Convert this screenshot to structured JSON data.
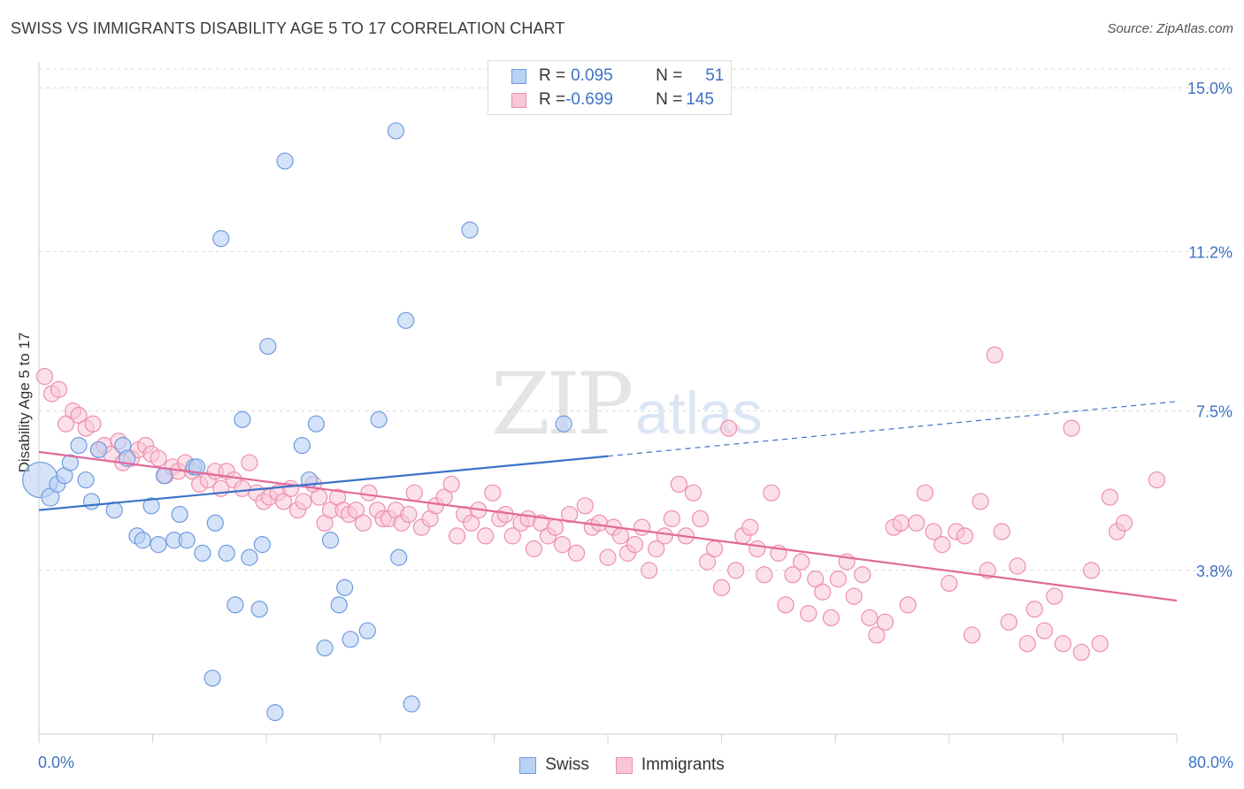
{
  "title": "SWISS VS IMMIGRANTS DISABILITY AGE 5 TO 17 CORRELATION CHART",
  "source": "Source: ZipAtlas.com",
  "watermark": {
    "zip": "ZIP",
    "atlas": "atlas"
  },
  "legend_top": [
    {
      "r_label": "R = ",
      "r_value": "0.095",
      "n_label": "N = ",
      "n_value": "51"
    },
    {
      "r_label": "R = ",
      "r_value": "-0.699",
      "n_label": "N = ",
      "n_value": "145"
    }
  ],
  "colors": {
    "swiss_fill": "#b9d1f3",
    "swiss_stroke": "#6f9be0",
    "swiss_line": "#3a72c8",
    "imm_fill": "#f9c6d5",
    "imm_stroke": "#ec8fae",
    "imm_line": "#e2699a",
    "axis_label": "#3e72c6",
    "grid": "#d9d9d9"
  },
  "chart_data": {
    "type": "scatter",
    "title": "SWISS VS IMMIGRANTS DISABILITY AGE 5 TO 17 CORRELATION CHART",
    "xlabel": "",
    "ylabel": "Disability Age 5 to 17",
    "xlim": [
      0,
      80
    ],
    "ylim": [
      0,
      15.6
    ],
    "x_tick_labels": [
      "0.0%",
      "80.0%"
    ],
    "y_ticks": [
      3.8,
      7.5,
      11.2,
      15.0
    ],
    "y_tick_labels": [
      "3.8%",
      "7.5%",
      "11.2%",
      "15.0%"
    ],
    "grid": "horizontal dashed",
    "series": [
      {
        "name": "Swiss",
        "r": 0.095,
        "n": 51,
        "trend": {
          "x0": 0,
          "y0": 5.2,
          "x1": 40,
          "y1": 6.45,
          "dash_to_x": 80,
          "dash_to_y": 7.72
        },
        "points": [
          [
            0.1,
            5.9,
            20
          ],
          [
            0.8,
            5.5,
            10
          ],
          [
            1.3,
            5.8,
            9
          ],
          [
            1.8,
            6.0,
            9
          ],
          [
            2.2,
            6.3,
            9
          ],
          [
            2.8,
            6.7,
            9
          ],
          [
            3.3,
            5.9,
            9
          ],
          [
            3.7,
            5.4,
            9
          ],
          [
            4.2,
            6.6,
            9
          ],
          [
            5.3,
            5.2,
            9
          ],
          [
            5.9,
            6.7,
            9
          ],
          [
            6.2,
            6.4,
            9
          ],
          [
            6.9,
            4.6,
            9
          ],
          [
            7.3,
            4.5,
            9
          ],
          [
            7.9,
            5.3,
            9
          ],
          [
            8.4,
            4.4,
            9
          ],
          [
            8.8,
            6.0,
            9
          ],
          [
            9.5,
            4.5,
            9
          ],
          [
            9.9,
            5.1,
            9
          ],
          [
            10.4,
            4.5,
            9
          ],
          [
            10.9,
            6.2,
            9
          ],
          [
            11.5,
            4.2,
            9
          ],
          [
            12.4,
            4.9,
            9
          ],
          [
            12.8,
            11.5,
            9
          ],
          [
            13.2,
            4.2,
            9
          ],
          [
            13.8,
            3.0,
            9
          ],
          [
            14.3,
            7.3,
            9
          ],
          [
            14.8,
            4.1,
            9
          ],
          [
            15.5,
            2.9,
            9
          ],
          [
            15.7,
            4.4,
            9
          ],
          [
            16.1,
            9.0,
            9
          ],
          [
            16.6,
            0.5,
            9
          ],
          [
            17.3,
            13.3,
            9
          ],
          [
            18.5,
            6.7,
            9
          ],
          [
            19.0,
            5.9,
            9
          ],
          [
            19.5,
            7.2,
            9
          ],
          [
            20.1,
            2.0,
            9
          ],
          [
            20.5,
            4.5,
            9
          ],
          [
            21.1,
            3.0,
            9
          ],
          [
            21.5,
            3.4,
            9
          ],
          [
            21.9,
            2.2,
            9
          ],
          [
            23.1,
            2.4,
            9
          ],
          [
            23.9,
            7.3,
            9
          ],
          [
            25.1,
            14.0,
            9
          ],
          [
            25.3,
            4.1,
            9
          ],
          [
            25.8,
            9.6,
            9
          ],
          [
            26.2,
            0.7,
            9
          ],
          [
            30.3,
            11.7,
            9
          ],
          [
            12.2,
            1.3,
            9
          ],
          [
            36.9,
            7.2,
            9
          ],
          [
            11.1,
            6.2,
            9
          ]
        ]
      },
      {
        "name": "Immigrants",
        "r": -0.699,
        "n": 145,
        "trend": {
          "x0": 0,
          "y0": 6.55,
          "x1": 80,
          "y1": 3.1
        },
        "points": [
          [
            0.4,
            8.3
          ],
          [
            0.9,
            7.9
          ],
          [
            1.4,
            8.0
          ],
          [
            1.9,
            7.2
          ],
          [
            2.4,
            7.5
          ],
          [
            2.8,
            7.4
          ],
          [
            3.3,
            7.1
          ],
          [
            3.8,
            7.2
          ],
          [
            4.2,
            6.6
          ],
          [
            4.6,
            6.7
          ],
          [
            5.1,
            6.5
          ],
          [
            5.6,
            6.8
          ],
          [
            5.9,
            6.3
          ],
          [
            6.5,
            6.4
          ],
          [
            7.0,
            6.6
          ],
          [
            7.5,
            6.7
          ],
          [
            7.9,
            6.5
          ],
          [
            8.4,
            6.4
          ],
          [
            8.9,
            6.0
          ],
          [
            9.4,
            6.2
          ],
          [
            9.8,
            6.1
          ],
          [
            10.3,
            6.3
          ],
          [
            10.8,
            6.1
          ],
          [
            11.3,
            5.8
          ],
          [
            11.9,
            5.9
          ],
          [
            12.4,
            6.1
          ],
          [
            12.8,
            5.7
          ],
          [
            13.2,
            6.1
          ],
          [
            13.7,
            5.9
          ],
          [
            14.3,
            5.7
          ],
          [
            14.8,
            6.3
          ],
          [
            15.3,
            5.6
          ],
          [
            15.8,
            5.4
          ],
          [
            16.2,
            5.5
          ],
          [
            16.8,
            5.6
          ],
          [
            17.2,
            5.4
          ],
          [
            17.7,
            5.7
          ],
          [
            18.2,
            5.2
          ],
          [
            18.6,
            5.4
          ],
          [
            19.3,
            5.8
          ],
          [
            19.7,
            5.5
          ],
          [
            20.1,
            4.9
          ],
          [
            20.5,
            5.2
          ],
          [
            21.0,
            5.5
          ],
          [
            21.4,
            5.2
          ],
          [
            21.8,
            5.1
          ],
          [
            22.3,
            5.2
          ],
          [
            22.8,
            4.9
          ],
          [
            23.2,
            5.6
          ],
          [
            23.8,
            5.2
          ],
          [
            24.2,
            5.0
          ],
          [
            24.6,
            5.0
          ],
          [
            25.1,
            5.2
          ],
          [
            25.5,
            4.9
          ],
          [
            26.0,
            5.1
          ],
          [
            26.4,
            5.6
          ],
          [
            26.9,
            4.8
          ],
          [
            27.5,
            5.0
          ],
          [
            27.9,
            5.3
          ],
          [
            28.5,
            5.5
          ],
          [
            29.0,
            5.8
          ],
          [
            29.4,
            4.6
          ],
          [
            29.9,
            5.1
          ],
          [
            30.4,
            4.9
          ],
          [
            30.9,
            5.2
          ],
          [
            31.4,
            4.6
          ],
          [
            31.9,
            5.6
          ],
          [
            32.4,
            5.0
          ],
          [
            32.8,
            5.1
          ],
          [
            33.3,
            4.6
          ],
          [
            33.9,
            4.9
          ],
          [
            34.4,
            5.0
          ],
          [
            34.8,
            4.3
          ],
          [
            35.3,
            4.9
          ],
          [
            35.8,
            4.6
          ],
          [
            36.3,
            4.8
          ],
          [
            36.8,
            4.4
          ],
          [
            37.3,
            5.1
          ],
          [
            37.8,
            4.2
          ],
          [
            38.4,
            5.3
          ],
          [
            38.9,
            4.8
          ],
          [
            39.4,
            4.9
          ],
          [
            40.0,
            4.1
          ],
          [
            40.4,
            4.8
          ],
          [
            40.9,
            4.6
          ],
          [
            41.4,
            4.2
          ],
          [
            41.9,
            4.4
          ],
          [
            42.4,
            4.8
          ],
          [
            42.9,
            3.8
          ],
          [
            43.4,
            4.3
          ],
          [
            44.0,
            4.6
          ],
          [
            44.5,
            5.0
          ],
          [
            45.0,
            5.8
          ],
          [
            45.5,
            4.6
          ],
          [
            46.0,
            5.6
          ],
          [
            46.5,
            5.0
          ],
          [
            47.0,
            4.0
          ],
          [
            47.5,
            4.3
          ],
          [
            48.0,
            3.4
          ],
          [
            48.5,
            7.1
          ],
          [
            49.0,
            3.8
          ],
          [
            49.5,
            4.6
          ],
          [
            50.0,
            4.8
          ],
          [
            50.5,
            4.3
          ],
          [
            51.0,
            3.7
          ],
          [
            51.5,
            5.6
          ],
          [
            52.0,
            4.2
          ],
          [
            52.5,
            3.0
          ],
          [
            53.0,
            3.7
          ],
          [
            53.6,
            4.0
          ],
          [
            54.1,
            2.8
          ],
          [
            54.6,
            3.6
          ],
          [
            55.1,
            3.3
          ],
          [
            55.7,
            2.7
          ],
          [
            56.2,
            3.6
          ],
          [
            56.8,
            4.0
          ],
          [
            57.3,
            3.2
          ],
          [
            57.9,
            3.7
          ],
          [
            58.4,
            2.7
          ],
          [
            58.9,
            2.3
          ],
          [
            59.5,
            2.6
          ],
          [
            60.1,
            4.8
          ],
          [
            60.6,
            4.9
          ],
          [
            61.1,
            3.0
          ],
          [
            61.7,
            4.9
          ],
          [
            62.3,
            5.6
          ],
          [
            62.9,
            4.7
          ],
          [
            63.5,
            4.4
          ],
          [
            64.0,
            3.5
          ],
          [
            64.5,
            4.7
          ],
          [
            65.1,
            4.6
          ],
          [
            65.6,
            2.3
          ],
          [
            66.2,
            5.4
          ],
          [
            66.7,
            3.8
          ],
          [
            67.2,
            8.8
          ],
          [
            67.7,
            4.7
          ],
          [
            68.2,
            2.6
          ],
          [
            68.8,
            3.9
          ],
          [
            69.5,
            2.1
          ],
          [
            70.0,
            2.9
          ],
          [
            70.7,
            2.4
          ],
          [
            71.4,
            3.2
          ],
          [
            72.0,
            2.1
          ],
          [
            72.6,
            7.1
          ],
          [
            73.3,
            1.9
          ],
          [
            74.0,
            3.8
          ],
          [
            74.6,
            2.1
          ],
          [
            75.3,
            5.5
          ],
          [
            75.8,
            4.7
          ],
          [
            76.3,
            4.9
          ],
          [
            78.6,
            5.9
          ]
        ]
      }
    ]
  }
}
